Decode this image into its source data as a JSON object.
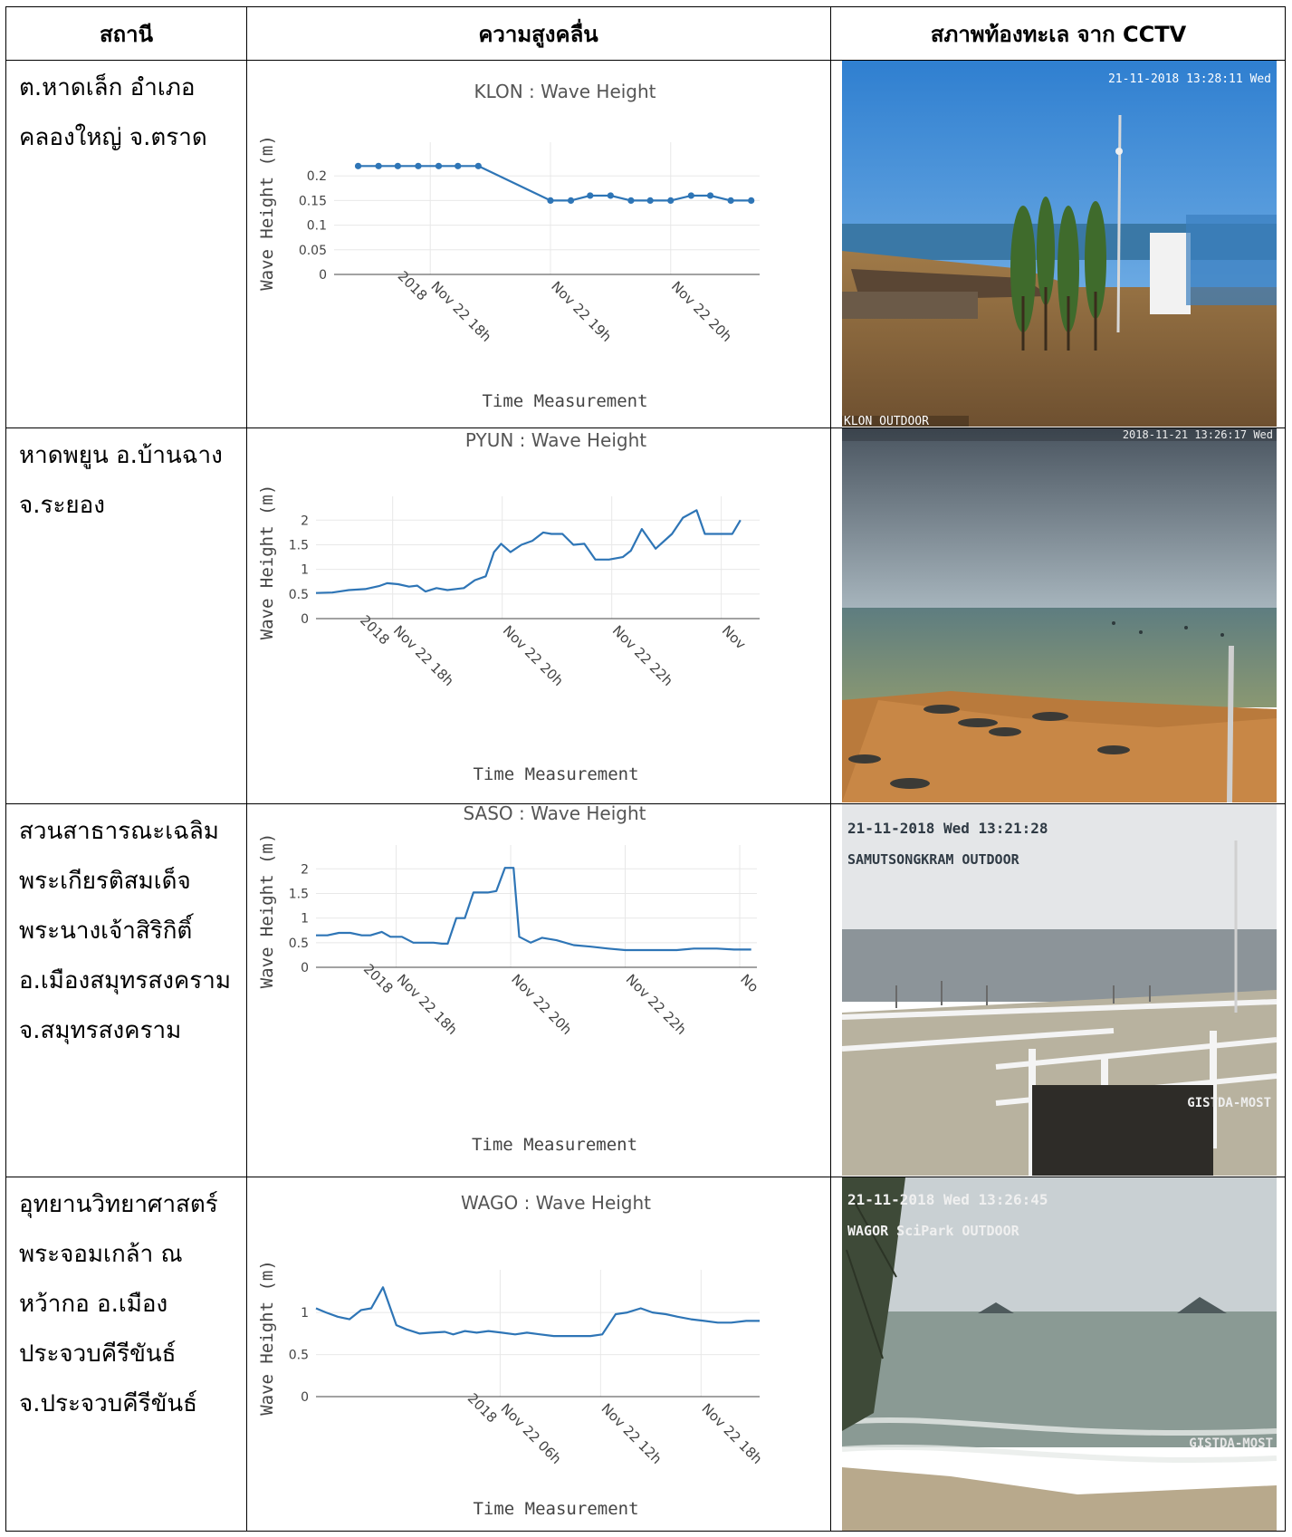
{
  "headers": {
    "station": "สถานี",
    "wave_height": "ความสูงคลื่น",
    "sea_condition": "สภาพท้องทะเล จาก CCTV"
  },
  "rows": [
    {
      "station_lines": [
        "ต.หาดเล็ก อำเภอ",
        "คลองใหญ่ จ.ตราด"
      ],
      "cctv": {
        "timestamp": "21-11-2018 13:28:11 Wed",
        "label": "KLON OUTDOOR",
        "watermark": ""
      }
    },
    {
      "station_lines": [
        "หาดพยูน อ.บ้านฉาง",
        "จ.ระยอง"
      ],
      "cctv": {
        "timestamp": "2018-11-21 13:26:17 Wed",
        "label": "",
        "watermark": ""
      }
    },
    {
      "station_lines": [
        "สวนสาธารณะเฉลิม",
        "พระเกียรติสมเด็จ",
        "พระนางเจ้าสิริกิติ์",
        "อ.เมืองสมุทรสงคราม",
        "จ.สมุทรสงคราม"
      ],
      "cctv": {
        "timestamp": "21-11-2018 Wed 13:21:28",
        "label": "SAMUTSONGKRAM OUTDOOR",
        "watermark": "GISTDA-MOST"
      }
    },
    {
      "station_lines": [
        "อุทยานวิทยาศาสตร์",
        "พระจอมเกล้า ณ",
        "หว้ากอ อ.เมือง",
        "ประจวบคีรีขันธ์",
        "จ.ประจวบคีรีขันธ์"
      ],
      "cctv": {
        "timestamp": "21-11-2018 Wed 13:26:45",
        "label": "WAGOR SciPark OUTDOOR",
        "watermark": "GISTDA-MOST"
      }
    }
  ],
  "chart_data": [
    {
      "type": "line",
      "title": "KLON : Wave Height",
      "xlabel": "Time Measurement",
      "ylabel": "Wave Height (m)",
      "x_unit": "hour",
      "x": [
        17.4,
        17.57,
        17.73,
        17.9,
        18.07,
        18.23,
        18.4,
        19.0,
        19.17,
        19.33,
        19.5,
        19.67,
        19.83,
        20.0,
        20.17,
        20.33,
        20.5,
        20.67
      ],
      "values": [
        0.22,
        0.22,
        0.22,
        0.22,
        0.22,
        0.22,
        0.22,
        0.15,
        0.15,
        0.16,
        0.16,
        0.15,
        0.15,
        0.15,
        0.16,
        0.16,
        0.15,
        0.15
      ],
      "markers": true,
      "xlim": [
        17.2,
        20.74
      ],
      "ylim": [
        0,
        0.25
      ],
      "yticks": [
        {
          "v": 0,
          "label": "0"
        },
        {
          "v": 0.05,
          "label": "0.05"
        },
        {
          "v": 0.1,
          "label": "0.1"
        },
        {
          "v": 0.15,
          "label": "0.15"
        },
        {
          "v": 0.2,
          "label": "0.2"
        }
      ],
      "xticks": [
        {
          "v": 18,
          "label": "Nov 22 18h",
          "sub": "2018"
        },
        {
          "v": 19,
          "label": "Nov 22 19h",
          "sub": ""
        },
        {
          "v": 20,
          "label": "Nov 22 20h",
          "sub": ""
        }
      ],
      "grid": true
    },
    {
      "type": "line",
      "title": "PYUN : Wave Height",
      "xlabel": "Time Measurement",
      "ylabel": "Wave Height (m)",
      "x_unit": "hour",
      "x": [
        16.6,
        16.9,
        17.2,
        17.5,
        17.75,
        17.9,
        18.1,
        18.3,
        18.45,
        18.6,
        18.8,
        19.0,
        19.3,
        19.5,
        19.7,
        19.85,
        19.98,
        20.15,
        20.35,
        20.55,
        20.75,
        20.9,
        21.1,
        21.3,
        21.5,
        21.7,
        21.95,
        22.2,
        22.35,
        22.55,
        22.8,
        23.1,
        23.3,
        23.55,
        23.7,
        24.0,
        24.2,
        24.35
      ],
      "values": [
        0.52,
        0.53,
        0.58,
        0.6,
        0.66,
        0.72,
        0.7,
        0.65,
        0.67,
        0.55,
        0.62,
        0.58,
        0.62,
        0.78,
        0.86,
        1.35,
        1.52,
        1.35,
        1.5,
        1.58,
        1.75,
        1.72,
        1.72,
        1.5,
        1.52,
        1.2,
        1.2,
        1.25,
        1.38,
        1.82,
        1.42,
        1.72,
        2.05,
        2.2,
        1.72,
        1.72,
        1.72,
        2.0
      ],
      "markers": false,
      "xlim": [
        16.6,
        24.7
      ],
      "ylim": [
        0,
        2.3
      ],
      "yticks": [
        {
          "v": 0,
          "label": "0"
        },
        {
          "v": 0.5,
          "label": "0.5"
        },
        {
          "v": 1,
          "label": "1"
        },
        {
          "v": 1.5,
          "label": "1.5"
        },
        {
          "v": 2,
          "label": "2"
        }
      ],
      "xticks": [
        {
          "v": 18,
          "label": "Nov 22 18h",
          "sub": "2018"
        },
        {
          "v": 20,
          "label": "Nov 22 20h",
          "sub": ""
        },
        {
          "v": 22,
          "label": "Nov 22 22h",
          "sub": ""
        },
        {
          "v": 24,
          "label": "Nov",
          "sub": ""
        }
      ],
      "grid": true
    },
    {
      "type": "line",
      "title": "SASO : Wave Height",
      "xlabel": "Time Measurement",
      "ylabel": "Wave Height (m)",
      "x_unit": "hour",
      "x": [
        16.6,
        16.8,
        17.0,
        17.2,
        17.4,
        17.55,
        17.75,
        17.9,
        18.1,
        18.3,
        18.5,
        18.65,
        18.8,
        18.9,
        19.05,
        19.2,
        19.35,
        19.6,
        19.75,
        19.9,
        20.05,
        20.15,
        20.35,
        20.55,
        20.8,
        21.1,
        21.4,
        21.7,
        22.0,
        22.3,
        22.6,
        22.9,
        23.2,
        23.6,
        23.9,
        24.2
      ],
      "values": [
        0.65,
        0.65,
        0.7,
        0.7,
        0.65,
        0.65,
        0.72,
        0.62,
        0.62,
        0.5,
        0.5,
        0.5,
        0.48,
        0.48,
        1.0,
        1.0,
        1.52,
        1.52,
        1.55,
        2.02,
        2.02,
        0.62,
        0.5,
        0.6,
        0.55,
        0.45,
        0.42,
        0.38,
        0.35,
        0.35,
        0.35,
        0.35,
        0.38,
        0.38,
        0.36,
        0.36
      ],
      "markers": false,
      "xlim": [
        16.6,
        24.3
      ],
      "ylim": [
        0,
        2.3
      ],
      "yticks": [
        {
          "v": 0,
          "label": "0"
        },
        {
          "v": 0.5,
          "label": "0.5"
        },
        {
          "v": 1,
          "label": "1"
        },
        {
          "v": 1.5,
          "label": "1.5"
        },
        {
          "v": 2,
          "label": "2"
        }
      ],
      "xticks": [
        {
          "v": 18,
          "label": "Nov 22 18h",
          "sub": "2018"
        },
        {
          "v": 20,
          "label": "Nov 22 20h",
          "sub": ""
        },
        {
          "v": 22,
          "label": "Nov 22 22h",
          "sub": ""
        },
        {
          "v": 24,
          "label": "No",
          "sub": ""
        }
      ],
      "grid": true
    },
    {
      "type": "line",
      "title": "WAGO : Wave Height",
      "xlabel": "Time Measurement",
      "ylabel": "Wave Height (m)",
      "x_unit": "hour",
      "x": [
        -5.0,
        -4.4,
        -3.7,
        -3.0,
        -2.3,
        -1.7,
        -1.0,
        -0.2,
        0.4,
        1.2,
        1.9,
        2.7,
        3.2,
        3.9,
        4.6,
        5.3,
        6.1,
        6.9,
        7.6,
        8.4,
        9.2,
        10.0,
        10.7,
        11.4,
        12.1,
        12.9,
        13.6,
        14.4,
        15.1,
        15.9,
        16.6,
        17.4,
        18.2,
        19.0,
        19.8,
        20.7,
        21.5
      ],
      "values": [
        1.05,
        1.0,
        0.95,
        0.92,
        1.03,
        1.05,
        1.3,
        0.85,
        0.8,
        0.75,
        0.76,
        0.77,
        0.74,
        0.78,
        0.76,
        0.78,
        0.76,
        0.74,
        0.76,
        0.74,
        0.72,
        0.72,
        0.72,
        0.72,
        0.74,
        0.98,
        1.0,
        1.05,
        1.0,
        0.98,
        0.95,
        0.92,
        0.9,
        0.88,
        0.88,
        0.9,
        0.9
      ],
      "markers": false,
      "xlim": [
        -5.0,
        21.5
      ],
      "ylim": [
        0,
        1.4
      ],
      "yticks": [
        {
          "v": 0,
          "label": "0"
        },
        {
          "v": 0.5,
          "label": "0.5"
        },
        {
          "v": 1,
          "label": "1"
        }
      ],
      "xticks": [
        {
          "v": 6,
          "label": "Nov 22 06h",
          "sub": "2018"
        },
        {
          "v": 12,
          "label": "Nov 22 12h",
          "sub": ""
        },
        {
          "v": 18,
          "label": "Nov 22 18h",
          "sub": ""
        }
      ],
      "grid": true
    }
  ],
  "colors": {
    "line": "#2e75b6",
    "grid": "#e8e8e8",
    "axis_text": "#444444",
    "title_text": "#555555"
  }
}
